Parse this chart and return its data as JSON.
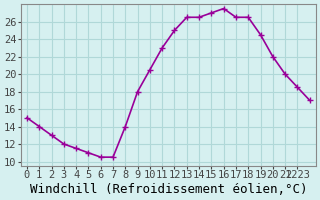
{
  "x": [
    0,
    1,
    2,
    3,
    4,
    5,
    6,
    7,
    8,
    9,
    10,
    11,
    12,
    13,
    14,
    15,
    16,
    17,
    18,
    19,
    20,
    21,
    22,
    23
  ],
  "y": [
    15,
    14,
    13,
    12,
    11.5,
    11,
    10.5,
    10.5,
    14,
    18,
    20.5,
    23,
    25,
    26.5,
    26.5,
    27,
    27.5,
    26.5,
    26.5,
    24.5,
    22,
    20,
    18.5,
    17
  ],
  "line_color": "#990099",
  "marker": "+",
  "marker_size": 5,
  "bg_color": "#d6f0f0",
  "grid_color": "#b0d8d8",
  "xlabel": "Windchill (Refroidissement éolien,°C)",
  "xlabel_fontsize": 9,
  "xtick_positions": [
    0,
    1,
    2,
    3,
    4,
    5,
    6,
    7,
    8,
    9,
    10,
    11,
    12,
    13,
    14,
    15,
    16,
    17,
    18,
    19,
    20,
    21,
    22
  ],
  "xtick_labels": [
    "0",
    "1",
    "2",
    "3",
    "4",
    "5",
    "6",
    "7",
    "8",
    "9",
    "10",
    "11",
    "12",
    "13",
    "14",
    "15",
    "16",
    "17",
    "18",
    "19",
    "20",
    "21",
    "2223"
  ],
  "ytick_values": [
    10,
    12,
    14,
    16,
    18,
    20,
    22,
    24,
    26
  ],
  "ylim": [
    9.5,
    28
  ],
  "xlim": [
    -0.5,
    23.5
  ],
  "tick_fontsize": 7.5
}
